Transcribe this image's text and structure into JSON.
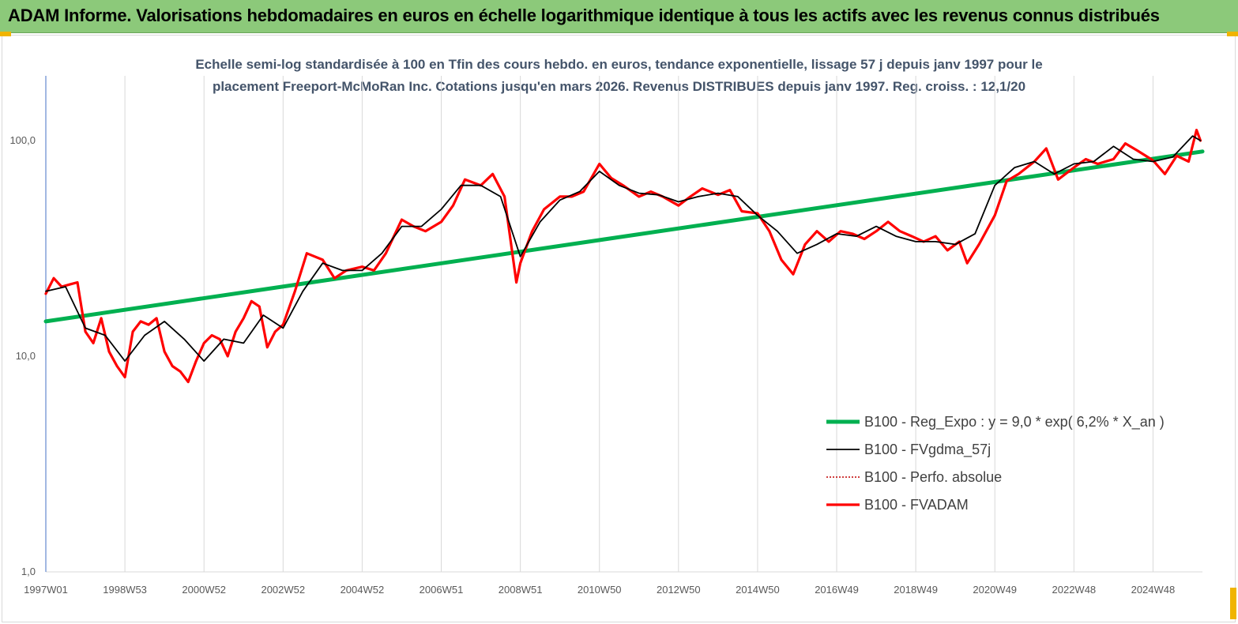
{
  "banner": {
    "title": "ADAM Informe. Valorisations hebdomadaires en euros en échelle logarithmique identique à tous les actifs avec les revenus connus distribués"
  },
  "chart_data": {
    "type": "line",
    "title_line1": "Echelle semi-log standardisée à 100 en Tfin des cours hebdo. en euros, tendance exponentielle, lissage 57 j depuis janv 1997 pour le",
    "title_line2": "placement Freeport-McMoRan Inc. Cotations jusqu'en mars 2026. Revenus DISTRIBUES depuis janv 1997. Reg. croiss. : 12,1/20",
    "y_scale": "log",
    "ylim": [
      1,
      200
    ],
    "xlim": [
      1997.0,
      2026.25
    ],
    "y_ticks": [
      {
        "value": 1,
        "label": "1,0"
      },
      {
        "value": 10,
        "label": "10,0"
      },
      {
        "value": 100,
        "label": "100,0"
      }
    ],
    "x_ticks": [
      {
        "value": 1997.0,
        "label": "1997W01"
      },
      {
        "value": 1999.0,
        "label": "1998W53"
      },
      {
        "value": 2001.0,
        "label": "2000W52"
      },
      {
        "value": 2003.0,
        "label": "2002W52"
      },
      {
        "value": 2005.0,
        "label": "2004W52"
      },
      {
        "value": 2007.0,
        "label": "2006W51"
      },
      {
        "value": 2009.0,
        "label": "2008W51"
      },
      {
        "value": 2011.0,
        "label": "2010W50"
      },
      {
        "value": 2013.0,
        "label": "2012W50"
      },
      {
        "value": 2015.0,
        "label": "2014W50"
      },
      {
        "value": 2017.0,
        "label": "2016W49"
      },
      {
        "value": 2019.0,
        "label": "2018W49"
      },
      {
        "value": 2021.0,
        "label": "2020W49"
      },
      {
        "value": 2023.0,
        "label": "2022W48"
      },
      {
        "value": 2025.0,
        "label": "2024W48"
      }
    ],
    "grid": "vertical",
    "legend_position": "bottom-right",
    "series": [
      {
        "name": "B100 - Reg_Expo : y = 9,0 *  exp( 6,2% *  X_an )",
        "color": "#00b050",
        "style": "solid-thick",
        "x": [
          1997.0,
          2026.25
        ],
        "y": [
          14.5,
          89.0
        ]
      },
      {
        "name": "B100 - FVgdma_57j",
        "color": "#000000",
        "style": "solid-thin",
        "x": [
          1997.0,
          1997.5,
          1998.0,
          1998.5,
          1999.0,
          1999.5,
          2000.0,
          2000.5,
          2001.0,
          2001.5,
          2002.0,
          2002.5,
          2003.0,
          2003.5,
          2004.0,
          2004.5,
          2005.0,
          2005.5,
          2006.0,
          2006.5,
          2007.0,
          2007.5,
          2008.0,
          2008.5,
          2009.0,
          2009.5,
          2010.0,
          2010.5,
          2011.0,
          2011.5,
          2012.0,
          2012.5,
          2013.0,
          2013.5,
          2014.0,
          2014.5,
          2015.0,
          2015.5,
          2016.0,
          2016.5,
          2017.0,
          2017.5,
          2018.0,
          2018.5,
          2019.0,
          2019.5,
          2020.0,
          2020.5,
          2021.0,
          2021.5,
          2022.0,
          2022.5,
          2023.0,
          2023.5,
          2024.0,
          2024.5,
          2025.0,
          2025.5,
          2026.0,
          2026.2
        ],
        "y": [
          20,
          21,
          13.5,
          12.5,
          9.5,
          12.5,
          14.5,
          12.0,
          9.5,
          12.0,
          11.5,
          15.5,
          13.5,
          20.0,
          27.0,
          25.0,
          25.0,
          30.0,
          40.0,
          40.0,
          48.0,
          62.0,
          62.0,
          55.0,
          29.0,
          42.0,
          53.0,
          58.0,
          72.0,
          62.0,
          57.0,
          56.0,
          52.0,
          55.0,
          57.0,
          55.0,
          45.0,
          38.0,
          30.0,
          33.0,
          37.0,
          36.0,
          40.0,
          36.0,
          34.0,
          34.0,
          33.0,
          37.0,
          62.0,
          75.0,
          80.0,
          70.0,
          78.0,
          80.0,
          94.0,
          82.0,
          80.0,
          84.0,
          105.0,
          100.0
        ]
      },
      {
        "name": "B100 - Perfo. absolue",
        "color": "#c00000",
        "style": "dotted",
        "x": [],
        "y": []
      },
      {
        "name": "B100 - FVADAM",
        "color": "#ff0000",
        "style": "solid-thick",
        "x": [
          1997.0,
          1997.2,
          1997.4,
          1997.6,
          1997.8,
          1998.0,
          1998.2,
          1998.4,
          1998.6,
          1998.8,
          1999.0,
          1999.2,
          1999.4,
          1999.6,
          1999.8,
          2000.0,
          2000.2,
          2000.4,
          2000.6,
          2000.8,
          2001.0,
          2001.2,
          2001.4,
          2001.6,
          2001.8,
          2002.0,
          2002.2,
          2002.4,
          2002.6,
          2002.8,
          2003.0,
          2003.3,
          2003.6,
          2004.0,
          2004.3,
          2004.6,
          2005.0,
          2005.3,
          2005.6,
          2006.0,
          2006.3,
          2006.6,
          2007.0,
          2007.3,
          2007.6,
          2008.0,
          2008.3,
          2008.6,
          2008.9,
          2009.0,
          2009.3,
          2009.6,
          2010.0,
          2010.3,
          2010.6,
          2011.0,
          2011.3,
          2011.6,
          2012.0,
          2012.3,
          2012.6,
          2013.0,
          2013.3,
          2013.6,
          2014.0,
          2014.3,
          2014.6,
          2015.0,
          2015.3,
          2015.6,
          2015.9,
          2016.2,
          2016.5,
          2016.8,
          2017.1,
          2017.4,
          2017.7,
          2018.0,
          2018.3,
          2018.6,
          2018.9,
          2019.2,
          2019.5,
          2019.8,
          2020.1,
          2020.3,
          2020.6,
          2021.0,
          2021.3,
          2021.6,
          2022.0,
          2022.3,
          2022.6,
          2023.0,
          2023.3,
          2023.6,
          2024.0,
          2024.3,
          2024.6,
          2025.0,
          2025.3,
          2025.6,
          2025.9,
          2026.1,
          2026.2
        ],
        "y": [
          19.5,
          23.0,
          21.0,
          21.5,
          22.0,
          13.0,
          11.5,
          15.0,
          10.5,
          9.0,
          8.0,
          13.0,
          14.5,
          14.0,
          15.0,
          10.5,
          9.0,
          8.5,
          7.6,
          9.5,
          11.5,
          12.5,
          12.0,
          10.0,
          13.0,
          15.0,
          18.0,
          17.0,
          11.0,
          13.0,
          14.0,
          20.0,
          30.0,
          28.0,
          23.0,
          25.0,
          26.0,
          25.0,
          30.0,
          43.0,
          40.0,
          38.0,
          42.0,
          50.0,
          66.0,
          62.0,
          70.0,
          55.0,
          22.0,
          27.0,
          38.0,
          48.0,
          55.0,
          55.0,
          58.0,
          78.0,
          67.0,
          62.0,
          55.0,
          58.0,
          55.0,
          50.0,
          55.0,
          60.0,
          56.0,
          59.0,
          47.0,
          46.0,
          38.0,
          28.0,
          24.0,
          33.0,
          38.0,
          34.0,
          38.0,
          37.0,
          35.0,
          38.0,
          42.0,
          38.0,
          36.0,
          34.0,
          36.0,
          31.0,
          34.0,
          27.0,
          33.0,
          45.0,
          65.0,
          70.0,
          80.0,
          92.0,
          66.0,
          75.0,
          82.0,
          78.0,
          82.0,
          97.0,
          90.0,
          81.0,
          70.0,
          85.0,
          80.0,
          112.0,
          100.0
        ]
      }
    ]
  }
}
